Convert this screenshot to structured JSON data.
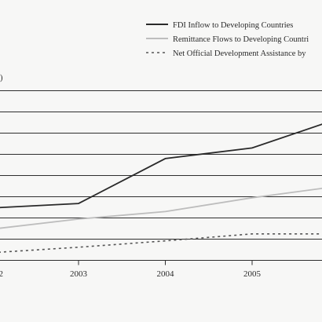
{
  "chart_data": {
    "type": "line",
    "title": "",
    "xlabel": "",
    "ylabel": ")",
    "x_ticks": [
      "2",
      "2003",
      "2004",
      "2005"
    ],
    "ylim": [
      0,
      8
    ],
    "grid": true,
    "legend_placement": "top-right",
    "series": [
      {
        "name": "FDI Inflow to Developing Countries",
        "color": "#2a2a2a",
        "style": "solid",
        "points": [
          {
            "x": 2001.95,
            "y": 2.46
          },
          {
            "x": 2003.0,
            "y": 2.68
          },
          {
            "x": 2004.0,
            "y": 4.8
          },
          {
            "x": 2005.0,
            "y": 5.3
          },
          {
            "x": 2005.85,
            "y": 6.48
          }
        ]
      },
      {
        "name": "Remittance Flows to Developing Countri",
        "color": "#bdbdbd",
        "style": "solid",
        "points": [
          {
            "x": 2001.95,
            "y": 1.45
          },
          {
            "x": 2003.0,
            "y": 1.95
          },
          {
            "x": 2004.0,
            "y": 2.3
          },
          {
            "x": 2005.0,
            "y": 2.95
          },
          {
            "x": 2005.85,
            "y": 3.42
          }
        ]
      },
      {
        "name": "Net Official Development Assistance by",
        "color": "#555555",
        "style": "dashed",
        "points": [
          {
            "x": 2001.95,
            "y": 0.35
          },
          {
            "x": 2003.0,
            "y": 0.62
          },
          {
            "x": 2004.0,
            "y": 0.92
          },
          {
            "x": 2005.0,
            "y": 1.25
          },
          {
            "x": 2005.85,
            "y": 1.25
          }
        ]
      }
    ]
  }
}
